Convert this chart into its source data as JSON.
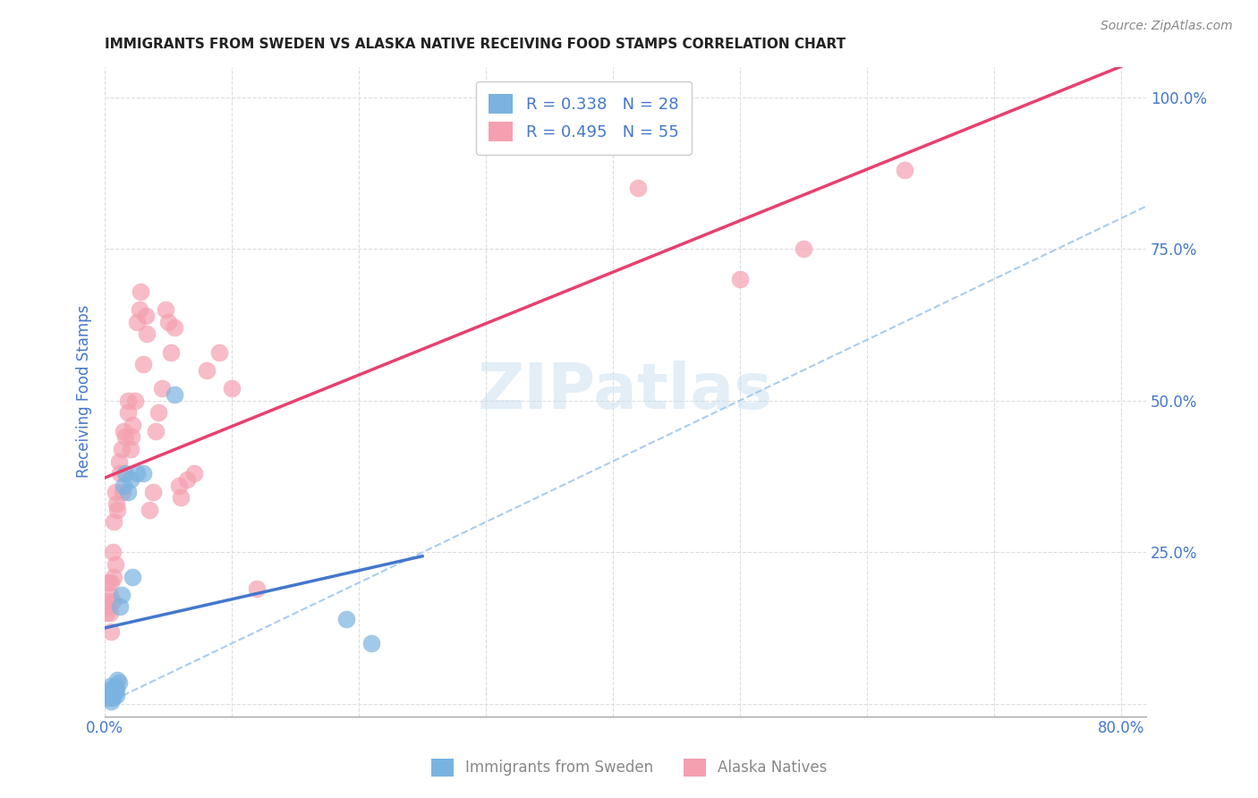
{
  "title": "IMMIGRANTS FROM SWEDEN VS ALASKA NATIVE RECEIVING FOOD STAMPS CORRELATION CHART",
  "source": "Source: ZipAtlas.com",
  "ylabel": "Receiving Food Stamps",
  "x_ticks": [
    0.0,
    0.1,
    0.2,
    0.3,
    0.4,
    0.5,
    0.6,
    0.7,
    0.8
  ],
  "x_tick_labels": [
    "0.0%",
    "",
    "",
    "",
    "",
    "",
    "",
    "",
    "80.0%"
  ],
  "y_ticks": [
    0.0,
    0.25,
    0.5,
    0.75,
    1.0
  ],
  "y_tick_labels": [
    "",
    "25.0%",
    "50.0%",
    "75.0%",
    "100.0%"
  ],
  "xlim": [
    0.0,
    0.82
  ],
  "ylim": [
    -0.02,
    1.05
  ],
  "background_color": "#ffffff",
  "grid_color": "#dddddd",
  "watermark": "ZIPatlas",
  "series1_color": "#7ab3e0",
  "series2_color": "#f4a0b0",
  "line1_color": "#4477cc",
  "line2_color": "#e84070",
  "dashed_line_color": "#aaccee",
  "axis_label_color": "#4477cc",
  "tick_label_color": "#4477cc",
  "legend1_label": "R = 0.338   N = 28",
  "legend2_label": "R = 0.495   N = 55",
  "bottom_legend1": "Immigrants from Sweden",
  "bottom_legend2": "Alaska Natives",
  "series1_points_x": [
    0.002,
    0.003,
    0.004,
    0.004,
    0.005,
    0.005,
    0.006,
    0.006,
    0.007,
    0.007,
    0.008,
    0.008,
    0.009,
    0.009,
    0.01,
    0.011,
    0.012,
    0.013,
    0.015,
    0.016,
    0.018,
    0.02,
    0.022,
    0.025,
    0.03,
    0.055,
    0.19,
    0.21
  ],
  "series1_points_y": [
    0.01,
    0.02,
    0.015,
    0.03,
    0.005,
    0.025,
    0.01,
    0.02,
    0.015,
    0.025,
    0.02,
    0.03,
    0.025,
    0.015,
    0.04,
    0.035,
    0.16,
    0.18,
    0.36,
    0.38,
    0.35,
    0.37,
    0.21,
    0.38,
    0.38,
    0.51,
    0.14,
    0.1
  ],
  "series2_points_x": [
    0.001,
    0.002,
    0.003,
    0.003,
    0.004,
    0.004,
    0.005,
    0.005,
    0.006,
    0.006,
    0.007,
    0.007,
    0.008,
    0.008,
    0.009,
    0.01,
    0.011,
    0.012,
    0.013,
    0.014,
    0.015,
    0.016,
    0.018,
    0.018,
    0.02,
    0.021,
    0.022,
    0.024,
    0.025,
    0.027,
    0.028,
    0.03,
    0.032,
    0.033,
    0.035,
    0.038,
    0.04,
    0.042,
    0.045,
    0.048,
    0.05,
    0.052,
    0.055,
    0.058,
    0.06,
    0.065,
    0.07,
    0.08,
    0.09,
    0.1,
    0.12,
    0.42,
    0.5,
    0.55,
    0.63
  ],
  "series2_points_y": [
    0.15,
    0.17,
    0.16,
    0.2,
    0.15,
    0.18,
    0.12,
    0.2,
    0.17,
    0.25,
    0.21,
    0.3,
    0.23,
    0.35,
    0.33,
    0.32,
    0.4,
    0.38,
    0.42,
    0.35,
    0.45,
    0.44,
    0.48,
    0.5,
    0.42,
    0.44,
    0.46,
    0.5,
    0.63,
    0.65,
    0.68,
    0.56,
    0.64,
    0.61,
    0.32,
    0.35,
    0.45,
    0.48,
    0.52,
    0.65,
    0.63,
    0.58,
    0.62,
    0.36,
    0.34,
    0.37,
    0.38,
    0.55,
    0.58,
    0.52,
    0.19,
    0.85,
    0.7,
    0.75,
    0.88
  ]
}
